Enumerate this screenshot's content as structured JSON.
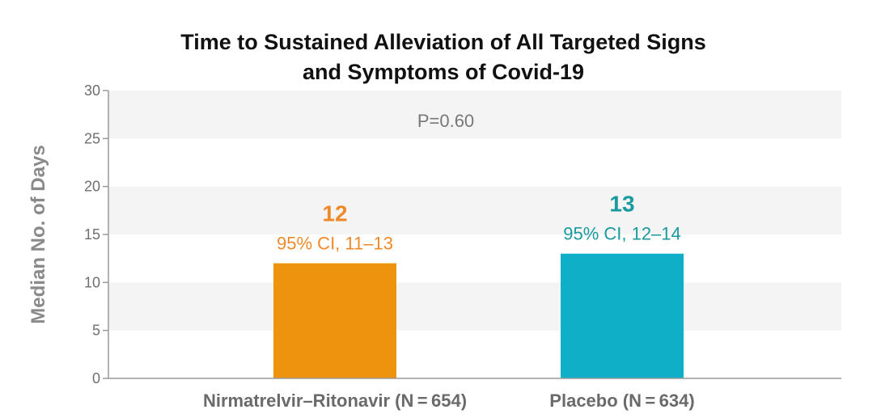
{
  "chart_data": {
    "type": "bar",
    "title_lines": [
      "Time to Sustained Alleviation of All Targeted Signs",
      "and Symptoms of Covid-19"
    ],
    "ylabel": "Median No. of Days",
    "xlabel": "",
    "ylim": [
      0,
      30
    ],
    "yticks": [
      0,
      5,
      10,
      15,
      20,
      25,
      30
    ],
    "grid": "alternating horizontal bands",
    "annotation": "P=0.60",
    "categories": [
      "Nirmatrelvir–Ritonavir (N = 654)",
      "Placebo (N = 634)"
    ],
    "values": [
      12,
      13
    ],
    "ci_labels": [
      "95% CI, 11–13",
      "95% CI, 12–14"
    ],
    "colors": [
      "#EE930E",
      "#0FB0C7"
    ],
    "label_colors": [
      "#EE8A2A",
      "#1A9A9E"
    ],
    "band_color": "#f4f4f4"
  }
}
